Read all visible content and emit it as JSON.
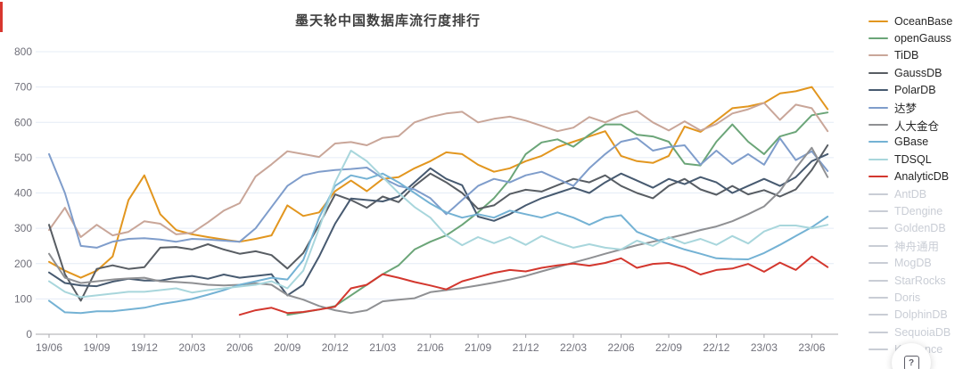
{
  "title": "墨天轮中国数据库流行度排行",
  "help_button": {
    "glyph": "?"
  },
  "colors": {
    "grid": "#e4ecf6",
    "axis": "#a8a8ae",
    "axis_text": "#70707a",
    "title_text": "#3f3f3f",
    "inactive_legend": "#c9cdd5"
  },
  "legend": {
    "position": "right",
    "items": [
      {
        "label": "OceanBase",
        "color": "#e2961f",
        "active": true
      },
      {
        "label": "openGauss",
        "color": "#6ba578",
        "active": true
      },
      {
        "label": "TiDB",
        "color": "#c9a699",
        "active": true
      },
      {
        "label": "GaussDB",
        "color": "#585d63",
        "active": true
      },
      {
        "label": "PolarDB",
        "color": "#475a70",
        "active": true
      },
      {
        "label": "达梦",
        "color": "#7f9dcb",
        "active": true
      },
      {
        "label": "人大金仓",
        "color": "#8f9093",
        "active": true
      },
      {
        "label": "GBase",
        "color": "#74b2d4",
        "active": true
      },
      {
        "label": "TDSQL",
        "color": "#a8d6dc",
        "active": true
      },
      {
        "label": "AnalyticDB",
        "color": "#d3372e",
        "active": true
      },
      {
        "label": "AntDB",
        "color": "#c9cdd5",
        "active": false
      },
      {
        "label": "TDengine",
        "color": "#c9cdd5",
        "active": false
      },
      {
        "label": "GoldenDB",
        "color": "#c9cdd5",
        "active": false
      },
      {
        "label": "神舟通用",
        "color": "#c9cdd5",
        "active": false
      },
      {
        "label": "MogDB",
        "color": "#c9cdd5",
        "active": false
      },
      {
        "label": "StarRocks",
        "color": "#c9cdd5",
        "active": false
      },
      {
        "label": "Doris",
        "color": "#c9cdd5",
        "active": false
      },
      {
        "label": "DolphinDB",
        "color": "#c9cdd5",
        "active": false
      },
      {
        "label": "SequoiaDB",
        "color": "#c9cdd5",
        "active": false
      },
      {
        "label": "Kyligence",
        "color": "#c9cdd5",
        "active": false
      }
    ]
  },
  "chart_data": {
    "type": "line",
    "title": "墨天轮中国数据库流行度排行",
    "xlabel": "",
    "ylabel": "",
    "ylim": [
      0,
      800
    ],
    "ytick_step": 100,
    "grid": true,
    "legend_position": "right",
    "x_tick_every": 3,
    "x": [
      "19/06",
      "19/07",
      "19/08",
      "19/09",
      "19/10",
      "19/11",
      "19/12",
      "20/01",
      "20/02",
      "20/03",
      "20/04",
      "20/05",
      "20/06",
      "20/07",
      "20/08",
      "20/09",
      "20/10",
      "20/11",
      "20/12",
      "21/01",
      "21/02",
      "21/03",
      "21/04",
      "21/05",
      "21/06",
      "21/07",
      "21/08",
      "21/09",
      "21/10",
      "21/11",
      "21/12",
      "22/01",
      "22/02",
      "22/03",
      "22/04",
      "22/05",
      "22/06",
      "22/07",
      "22/08",
      "22/09",
      "22/10",
      "22/11",
      "22/12",
      "23/01",
      "23/02",
      "23/03",
      "23/04",
      "23/05",
      "23/06",
      "23/07"
    ],
    "series": [
      {
        "name": "OceanBase",
        "color": "#e2961f",
        "values": [
          205,
          180,
          160,
          180,
          220,
          380,
          450,
          340,
          295,
          283,
          275,
          268,
          262,
          270,
          280,
          365,
          335,
          345,
          405,
          435,
          405,
          440,
          445,
          470,
          490,
          515,
          510,
          480,
          460,
          470,
          490,
          505,
          530,
          545,
          560,
          575,
          505,
          490,
          485,
          505,
          588,
          573,
          605,
          640,
          645,
          655,
          682,
          688,
          700,
          637
        ]
      },
      {
        "name": "openGauss",
        "color": "#6ba578",
        "values": [
          null,
          null,
          null,
          null,
          null,
          null,
          null,
          null,
          null,
          null,
          null,
          null,
          null,
          null,
          null,
          55,
          62,
          70,
          80,
          110,
          140,
          170,
          195,
          240,
          262,
          280,
          310,
          345,
          385,
          438,
          510,
          543,
          552,
          531,
          565,
          594,
          594,
          565,
          560,
          545,
          483,
          478,
          545,
          594,
          545,
          510,
          560,
          573,
          620,
          628
        ]
      },
      {
        "name": "TiDB",
        "color": "#c9a699",
        "values": [
          295,
          358,
          275,
          310,
          280,
          290,
          320,
          313,
          283,
          287,
          317,
          350,
          371,
          447,
          481,
          518,
          510,
          502,
          540,
          544,
          535,
          556,
          561,
          600,
          615,
          625,
          630,
          600,
          610,
          616,
          605,
          590,
          575,
          585,
          615,
          600,
          620,
          632,
          600,
          577,
          603,
          577,
          595,
          625,
          637,
          655,
          607,
          650,
          640,
          575
        ]
      },
      {
        "name": "GaussDB",
        "color": "#585d63",
        "values": [
          310,
          170,
          95,
          185,
          195,
          185,
          190,
          245,
          247,
          240,
          255,
          240,
          228,
          235,
          224,
          186,
          230,
          310,
          396,
          380,
          358,
          390,
          374,
          420,
          455,
          430,
          400,
          355,
          365,
          397,
          409,
          404,
          422,
          440,
          430,
          450,
          420,
          400,
          385,
          420,
          440,
          410,
          395,
          420,
          396,
          408,
          390,
          410,
          465,
          535
        ]
      },
      {
        "name": "PolarDB",
        "color": "#475a70",
        "values": [
          175,
          145,
          138,
          136,
          149,
          157,
          152,
          152,
          160,
          165,
          157,
          169,
          160,
          165,
          170,
          110,
          140,
          220,
          313,
          384,
          380,
          376,
          390,
          430,
          470,
          440,
          422,
          333,
          321,
          340,
          365,
          385,
          400,
          415,
          400,
          430,
          455,
          435,
          415,
          440,
          425,
          445,
          430,
          400,
          420,
          440,
          420,
          445,
          490,
          510
        ]
      },
      {
        "name": "达梦",
        "color": "#7f9dcb",
        "values": [
          510,
          400,
          250,
          245,
          262,
          270,
          272,
          268,
          262,
          270,
          268,
          265,
          262,
          300,
          360,
          420,
          450,
          460,
          465,
          468,
          472,
          442,
          420,
          410,
          385,
          340,
          380,
          420,
          440,
          430,
          450,
          460,
          440,
          420,
          470,
          510,
          545,
          555,
          520,
          530,
          535,
          480,
          520,
          482,
          510,
          480,
          555,
          493,
          518,
          462
        ]
      },
      {
        "name": "人大金仓",
        "color": "#8f9093",
        "values": [
          228,
          160,
          145,
          150,
          155,
          158,
          160,
          150,
          148,
          145,
          140,
          138,
          140,
          144,
          140,
          111,
          98,
          80,
          68,
          60,
          68,
          93,
          98,
          102,
          119,
          125,
          131,
          138,
          146,
          155,
          165,
          178,
          190,
          203,
          215,
          228,
          240,
          252,
          262,
          272,
          283,
          295,
          305,
          320,
          340,
          362,
          405,
          470,
          528,
          445
        ]
      },
      {
        "name": "GBase",
        "color": "#74b2d4",
        "values": [
          95,
          62,
          60,
          65,
          65,
          70,
          75,
          85,
          92,
          100,
          112,
          125,
          140,
          150,
          160,
          155,
          210,
          330,
          420,
          450,
          440,
          455,
          430,
          400,
          370,
          345,
          330,
          340,
          330,
          350,
          340,
          330,
          345,
          330,
          310,
          330,
          337,
          290,
          272,
          255,
          240,
          228,
          215,
          213,
          212,
          230,
          253,
          278,
          303,
          333
        ]
      },
      {
        "name": "TDSQL",
        "color": "#a8d6dc",
        "values": [
          150,
          120,
          105,
          110,
          115,
          120,
          120,
          125,
          130,
          118,
          125,
          130,
          135,
          140,
          150,
          130,
          180,
          300,
          430,
          520,
          490,
          445,
          400,
          360,
          330,
          280,
          252,
          275,
          258,
          275,
          253,
          278,
          260,
          245,
          255,
          245,
          240,
          265,
          250,
          275,
          257,
          270,
          253,
          278,
          257,
          291,
          308,
          308,
          300,
          310
        ]
      },
      {
        "name": "AnalyticDB",
        "color": "#d3372e",
        "values": [
          null,
          null,
          null,
          null,
          null,
          null,
          null,
          null,
          null,
          null,
          null,
          null,
          55,
          68,
          75,
          60,
          63,
          70,
          78,
          130,
          140,
          170,
          160,
          148,
          138,
          127,
          150,
          162,
          174,
          182,
          178,
          188,
          195,
          200,
          194,
          202,
          215,
          188,
          199,
          202,
          190,
          169,
          182,
          186,
          199,
          177,
          203,
          182,
          220,
          190
        ]
      }
    ]
  }
}
